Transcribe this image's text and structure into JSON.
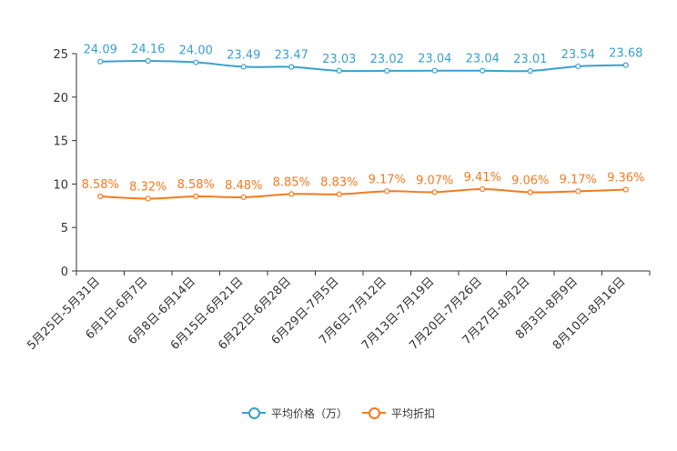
{
  "chart_data": {
    "type": "line",
    "title": "",
    "xlabel": "",
    "ylabel": "",
    "ylim": [
      0,
      25
    ],
    "yticks": [
      0,
      5,
      10,
      15,
      20,
      25
    ],
    "categories": [
      "5月25日-5月31日",
      "6月1日-6月7日",
      "6月8日-6月14日",
      "6月15日-6月21日",
      "6月22日-6月28日",
      "6月29日-7月5日",
      "7月6日-7月12日",
      "7月13日-7月19日",
      "7月20日-7月26日",
      "7月27日-8月2日",
      "8月3日-8月9日",
      "8月10日-8月16日"
    ],
    "series": [
      {
        "name": "平均价格（万）",
        "color": "#3a9fd1",
        "values": [
          24.09,
          24.16,
          24.0,
          23.49,
          23.47,
          23.03,
          23.02,
          23.04,
          23.04,
          23.01,
          23.54,
          23.68
        ],
        "labels": [
          "24.09",
          "24.16",
          "24.00",
          "23.49",
          "23.47",
          "23.03",
          "23.02",
          "23.04",
          "23.04",
          "23.01",
          "23.54",
          "23.68"
        ]
      },
      {
        "name": "平均折扣",
        "color": "#f47a1f",
        "values": [
          8.58,
          8.32,
          8.58,
          8.48,
          8.85,
          8.83,
          9.17,
          9.07,
          9.41,
          9.06,
          9.17,
          9.36
        ],
        "labels": [
          "8.58%",
          "8.32%",
          "8.58%",
          "8.48%",
          "8.85%",
          "8.83%",
          "9.17%",
          "9.07%",
          "9.41%",
          "9.06%",
          "9.17%",
          "9.36%"
        ]
      }
    ],
    "grid": false,
    "legend": "bottom-center"
  }
}
